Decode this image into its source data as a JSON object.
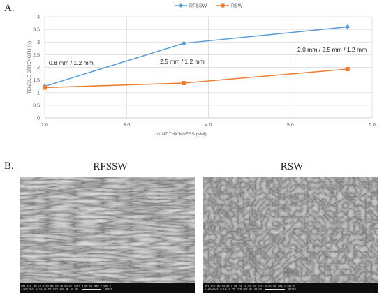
{
  "panels": {
    "a_label": "A.",
    "b_label": "B."
  },
  "chart_data": {
    "type": "line",
    "title": "",
    "xlabel": "JOINT THICKNESS (MM)",
    "ylabel": "TENSILE STRENGTH (N)",
    "xlim": [
      2.0,
      6.0
    ],
    "ylim": [
      0,
      4
    ],
    "xticks": [
      "2.0",
      "3.0",
      "4.0",
      "5.0",
      "6.0"
    ],
    "yticks": [
      "0",
      "0.5",
      "1",
      "1.5",
      "2",
      "2.5",
      "3",
      "3.5",
      "4"
    ],
    "grid": true,
    "legend_position": "top-center",
    "series": [
      {
        "name": "RFSSW",
        "color": "#5b9bd5",
        "marker": "diamond",
        "x": [
          2.0,
          3.7,
          5.7
        ],
        "y": [
          1.25,
          2.95,
          3.6
        ]
      },
      {
        "name": "RSW",
        "color": "#ed7d31",
        "marker": "square",
        "x": [
          2.0,
          3.7,
          5.7
        ],
        "y": [
          1.2,
          1.38,
          1.93
        ]
      }
    ],
    "annotations": [
      "0.8 mm / 1.2 mm",
      "2.5 mm / 1.2 mm",
      "2.0 mm / 2.5 mm / 1.2 mm"
    ]
  },
  "micrographs": [
    {
      "title": "RFSSW",
      "databar": {
        "det": "det ETD",
        "wd": "WD 18.8764 mm",
        "hv": "HV 10.00 kV",
        "curr": "curr 0.80 nA",
        "mag": "mag 2 500 x",
        "date": "7/26/2024 2:44:21 PM",
        "hfw": "HFW 166 µm",
        "scale": "50 µm",
        "brand": "Apreo"
      }
    },
    {
      "title": "RSW",
      "databar": {
        "det": "det ETD",
        "wd": "WD 14.8973 mm",
        "hv": "HV 10.00 kV",
        "curr": "curr 0.80 nA",
        "mag": "mag 2 500 x",
        "date": "7/26/2024 3:01:18 PM",
        "hfw": "HFW 166 µm",
        "scale": "50 µm",
        "brand": "Apreo"
      }
    }
  ]
}
